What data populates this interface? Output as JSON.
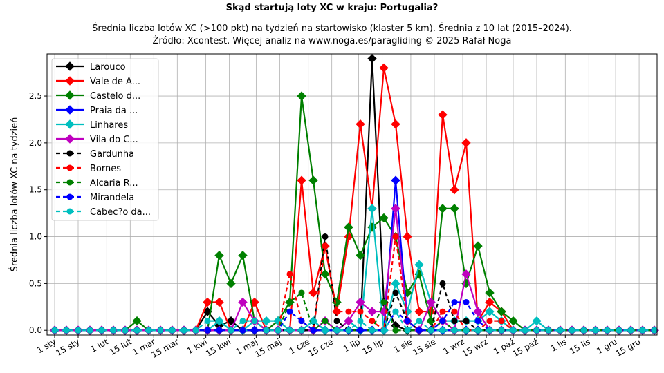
{
  "chart_data": {
    "type": "line",
    "title": "Skąd startują loty XC w kraju: Portugalia?",
    "subtitle_line1": "Średnia liczba lotów XC (>100 pkt) na tydzień na startowisko (klaster 5 km). Średnia z 10 lat (2015–2024).",
    "subtitle_line2": "Źródło: Xcontest. Więcej analiz na www.noga.es/paragliding © 2025 Rafał Noga",
    "ylabel": "Średnia liczba lotów XC na tydzień",
    "xlabel": "",
    "ylim": [
      -0.05,
      2.95
    ],
    "yticks": [
      "0.0",
      "0.5",
      "1.0",
      "1.5",
      "2.0",
      "2.5"
    ],
    "xticks": [
      {
        "label": "1 sty",
        "week": 0
      },
      {
        "label": "15 sty",
        "week": 2
      },
      {
        "label": "1 lut",
        "week": 4.43
      },
      {
        "label": "15 lut",
        "week": 6.43
      },
      {
        "label": "1 mar",
        "week": 8.43
      },
      {
        "label": "15 mar",
        "week": 10.43
      },
      {
        "label": "1 kwi",
        "week": 12.86
      },
      {
        "label": "15 kwi",
        "week": 14.86
      },
      {
        "label": "1 maj",
        "week": 17.14
      },
      {
        "label": "15 maj",
        "week": 19.14
      },
      {
        "label": "1 cze",
        "week": 21.57
      },
      {
        "label": "15 cze",
        "week": 23.57
      },
      {
        "label": "1 lip",
        "week": 25.86
      },
      {
        "label": "15 lip",
        "week": 27.86
      },
      {
        "label": "1 sie",
        "week": 30.29
      },
      {
        "label": "15 sie",
        "week": 32.29
      },
      {
        "label": "1 wrz",
        "week": 34.71
      },
      {
        "label": "15 wrz",
        "week": 36.71
      },
      {
        "label": "1 paź",
        "week": 39
      },
      {
        "label": "15 paź",
        "week": 41
      },
      {
        "label": "1 lis",
        "week": 43.43
      },
      {
        "label": "15 lis",
        "week": 45.43
      },
      {
        "label": "1 gru",
        "week": 47.71
      },
      {
        "label": "15 gru",
        "week": 49.71
      }
    ],
    "grid": true,
    "legend_placement": "top-left",
    "series": [
      {
        "name": "Larouco",
        "color": "#000000",
        "dashed": false,
        "marker": "diamond",
        "points": {
          "13": 0.2,
          "14": 0.05,
          "15": 0.1,
          "27": 2.9,
          "28": 0.3,
          "29": 0.05
        }
      },
      {
        "name": "Vale de A...",
        "color": "#ff0000",
        "dashed": false,
        "marker": "diamond",
        "points": {
          "13": 0.3,
          "14": 0.3,
          "17": 0.3,
          "19": 0.1,
          "21": 1.6,
          "22": 0.4,
          "23": 0.9,
          "24": 0.2,
          "25": 1.0,
          "26": 2.2,
          "27": 1.3,
          "28": 2.8,
          "29": 2.2,
          "30": 1.0,
          "31": 0.2,
          "32": 0.2,
          "33": 2.3,
          "34": 1.5,
          "35": 2.0,
          "36": 0.1,
          "37": 0.3,
          "38": 0.2
        }
      },
      {
        "name": "Castelo d...",
        "color": "#008000",
        "dashed": false,
        "marker": "diamond",
        "points": {
          "7": 0.1,
          "14": 0.8,
          "15": 0.5,
          "16": 0.8,
          "17": 0.1,
          "19": 0.1,
          "20": 0.3,
          "21": 2.5,
          "22": 1.6,
          "23": 0.6,
          "24": 0.3,
          "25": 1.1,
          "26": 0.8,
          "27": 1.1,
          "28": 1.2,
          "29": 1.0,
          "30": 0.4,
          "31": 0.6,
          "32": 0.1,
          "33": 1.3,
          "34": 1.3,
          "35": 0.5,
          "36": 0.9,
          "37": 0.4,
          "38": 0.2,
          "39": 0.1
        }
      },
      {
        "name": "Praia da ...",
        "color": "#0000ff",
        "dashed": false,
        "marker": "diamond",
        "points": {
          "29": 1.6,
          "30": 0.1
        }
      },
      {
        "name": "Linhares",
        "color": "#00bfbf",
        "dashed": false,
        "marker": "diamond",
        "points": {
          "14": 0.1,
          "17": 0.1,
          "18": 0.1,
          "19": 0.1,
          "22": 0.1,
          "25": 0.1,
          "27": 1.3,
          "29": 0.5,
          "30": 0.2,
          "31": 0.7,
          "32": 0.3,
          "33": 0.1,
          "34": 0.1,
          "35": 0.1,
          "36": 0.1,
          "37": 0.2,
          "38": 0.1,
          "41": 0.1
        }
      },
      {
        "name": "Vila do C...",
        "color": "#bf00bf",
        "dashed": false,
        "marker": "diamond",
        "points": {
          "16": 0.3,
          "17": 0.1,
          "23": 0.1,
          "25": 0.1,
          "26": 0.3,
          "27": 0.2,
          "28": 0.2,
          "29": 1.3,
          "30": 0.1,
          "32": 0.3,
          "33": 0.1,
          "35": 0.6,
          "36": 0.2
        }
      },
      {
        "name": "Gardunha",
        "color": "#000000",
        "dashed": true,
        "marker": "circle",
        "points": {
          "23": 1.0,
          "24": 0.1,
          "29": 0.4,
          "30": 0.1,
          "33": 0.5,
          "34": 0.1,
          "35": 0.1
        }
      },
      {
        "name": "Bornes",
        "color": "#ff0000",
        "dashed": true,
        "marker": "circle",
        "points": {
          "20": 0.6,
          "21": 0.1,
          "23": 0.9,
          "24": 0.2,
          "25": 0.2,
          "26": 0.2,
          "27": 0.1,
          "29": 1.0,
          "30": 0.1,
          "33": 0.2,
          "34": 0.2,
          "37": 0.1,
          "38": 0.1
        }
      },
      {
        "name": "Alcaria R...",
        "color": "#008000",
        "dashed": true,
        "marker": "circle",
        "points": {
          "20": 0.3,
          "21": 0.4,
          "23": 0.1,
          "28": 0.3,
          "33": 0.1
        }
      },
      {
        "name": "Mirandela",
        "color": "#0000ff",
        "dashed": true,
        "marker": "circle",
        "points": {
          "20": 0.2,
          "21": 0.1,
          "29": 0.2,
          "30": 0.1,
          "33": 0.1,
          "34": 0.3,
          "35": 0.3,
          "36": 0.1
        }
      },
      {
        "name": "Cabec?o da...",
        "color": "#00bfbf",
        "dashed": true,
        "marker": "circle",
        "points": {
          "13": 0.1,
          "14": 0.1,
          "16": 0.1,
          "17": 0.1,
          "22": 0.1,
          "26": 0.1,
          "29": 0.2,
          "31": 0.1
        }
      }
    ],
    "weeks": 52
  }
}
